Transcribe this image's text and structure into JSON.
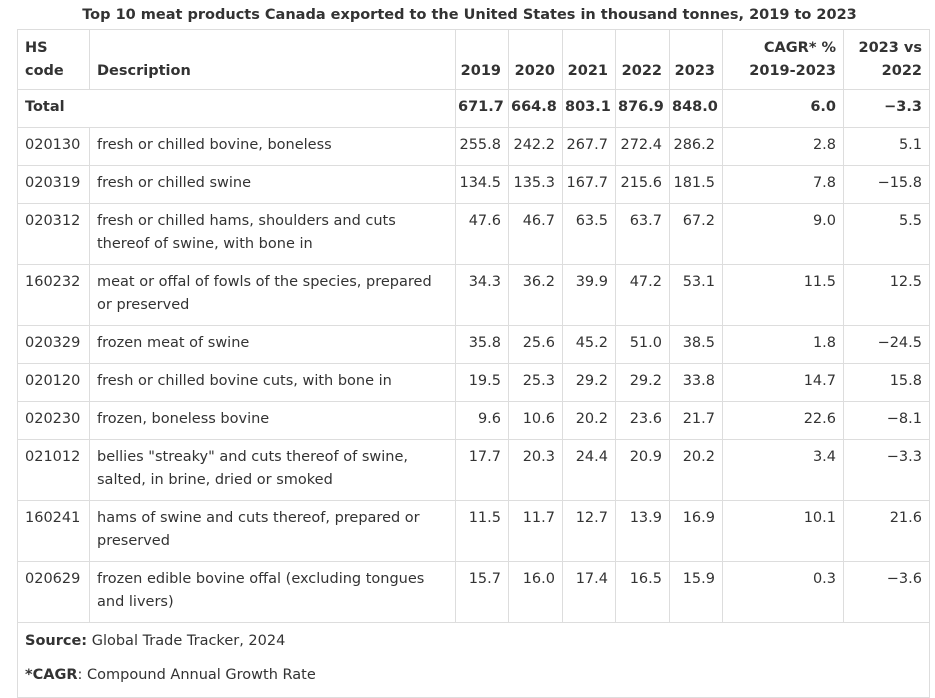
{
  "title": "Top 10 meat products Canada exported to the United States in thousand tonnes, 2019 to 2023",
  "headers": {
    "hs_code": [
      "HS",
      "code"
    ],
    "description": "Description",
    "years": [
      "2019",
      "2020",
      "2021",
      "2022",
      "2023"
    ],
    "cagr": [
      "CAGR* %",
      "2019-2023"
    ],
    "vs": [
      "2023 vs",
      "2022"
    ]
  },
  "total": {
    "label": "Total",
    "values": [
      "671.7",
      "664.8",
      "803.1",
      "876.9",
      "848.0"
    ],
    "cagr": "6.0",
    "vs": "−3.3"
  },
  "rows": [
    {
      "code": "020130",
      "desc": "fresh or chilled bovine, boneless",
      "values": [
        "255.8",
        "242.2",
        "267.7",
        "272.4",
        "286.2"
      ],
      "cagr": "2.8",
      "vs": "5.1"
    },
    {
      "code": "020319",
      "desc": "fresh or chilled swine",
      "values": [
        "134.5",
        "135.3",
        "167.7",
        "215.6",
        "181.5"
      ],
      "cagr": "7.8",
      "vs": "−15.8"
    },
    {
      "code": "020312",
      "desc": "fresh or chilled hams, shoulders and cuts thereof of swine, with bone in",
      "values": [
        "47.6",
        "46.7",
        "63.5",
        "63.7",
        "67.2"
      ],
      "cagr": "9.0",
      "vs": "5.5"
    },
    {
      "code": "160232",
      "desc": "meat or offal of fowls of the species, prepared or preserved",
      "values": [
        "34.3",
        "36.2",
        "39.9",
        "47.2",
        "53.1"
      ],
      "cagr": "11.5",
      "vs": "12.5"
    },
    {
      "code": "020329",
      "desc": "frozen meat of swine",
      "values": [
        "35.8",
        "25.6",
        "45.2",
        "51.0",
        "38.5"
      ],
      "cagr": "1.8",
      "vs": "−24.5"
    },
    {
      "code": "020120",
      "desc": "fresh or chilled bovine cuts, with bone in",
      "values": [
        "19.5",
        "25.3",
        "29.2",
        "29.2",
        "33.8"
      ],
      "cagr": "14.7",
      "vs": "15.8"
    },
    {
      "code": "020230",
      "desc": "frozen, boneless bovine",
      "values": [
        "9.6",
        "10.6",
        "20.2",
        "23.6",
        "21.7"
      ],
      "cagr": "22.6",
      "vs": "−8.1"
    },
    {
      "code": "021012",
      "desc": "bellies \"streaky\" and cuts thereof of swine, salted, in brine, dried or smoked",
      "values": [
        "17.7",
        "20.3",
        "24.4",
        "20.9",
        "20.2"
      ],
      "cagr": "3.4",
      "vs": "−3.3"
    },
    {
      "code": "160241",
      "desc": "hams of swine and cuts thereof, prepared or preserved",
      "values": [
        "11.5",
        "11.7",
        "12.7",
        "13.9",
        "16.9"
      ],
      "cagr": "10.1",
      "vs": "21.6"
    },
    {
      "code": "020629",
      "desc": "frozen edible bovine offal (excluding tongues and livers)",
      "values": [
        "15.7",
        "16.0",
        "17.4",
        "16.5",
        "15.9"
      ],
      "cagr": "0.3",
      "vs": "−3.6"
    }
  ],
  "footnotes": {
    "source_label": "Source:",
    "source_text": " Global Trade Tracker, 2024",
    "cagr_label": "*CAGR",
    "cagr_text": ": Compound Annual Growth Rate"
  }
}
